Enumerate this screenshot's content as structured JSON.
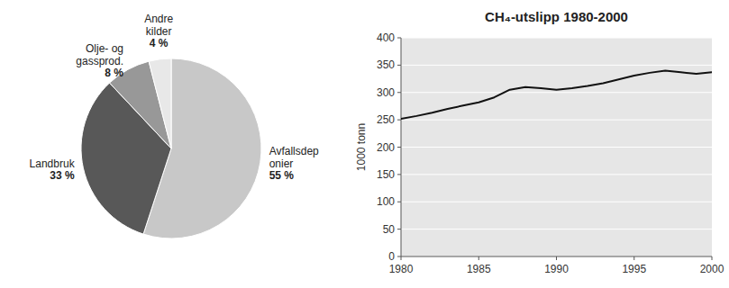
{
  "chart_data": [
    {
      "type": "pie",
      "categories": [
        "Avfallsdep\nonier",
        "Landbruk",
        "Olje- og\ngassprod.",
        "Andre\nkilder"
      ],
      "values": [
        55,
        33,
        8,
        4
      ],
      "value_labels": [
        "55 %",
        "33 %",
        "8 %",
        "4 %"
      ],
      "data_labels": true,
      "colors": [
        "#c8c8c8",
        "#585858",
        "#989898",
        "#e8e8e8"
      ]
    },
    {
      "type": "line",
      "title": "CH₄-utslipp 1980-2000",
      "y_label": "1000 tonn",
      "x": [
        1980,
        1981,
        1982,
        1983,
        1984,
        1985,
        1986,
        1987,
        1988,
        1989,
        1990,
        1991,
        1992,
        1993,
        1994,
        1995,
        1996,
        1997,
        1998,
        1999,
        2000
      ],
      "values": [
        252,
        257,
        263,
        270,
        276,
        282,
        291,
        305,
        310,
        308,
        305,
        308,
        312,
        317,
        324,
        331,
        336,
        340,
        337,
        334,
        337
      ],
      "xlim": [
        1980,
        2000
      ],
      "ylim": [
        0,
        400
      ],
      "xticks": [
        1980,
        1985,
        1990,
        1995,
        2000
      ],
      "yticks": [
        0,
        50,
        100,
        150,
        200,
        250,
        300,
        350,
        400
      ],
      "grid": true,
      "color": "#111111"
    }
  ]
}
